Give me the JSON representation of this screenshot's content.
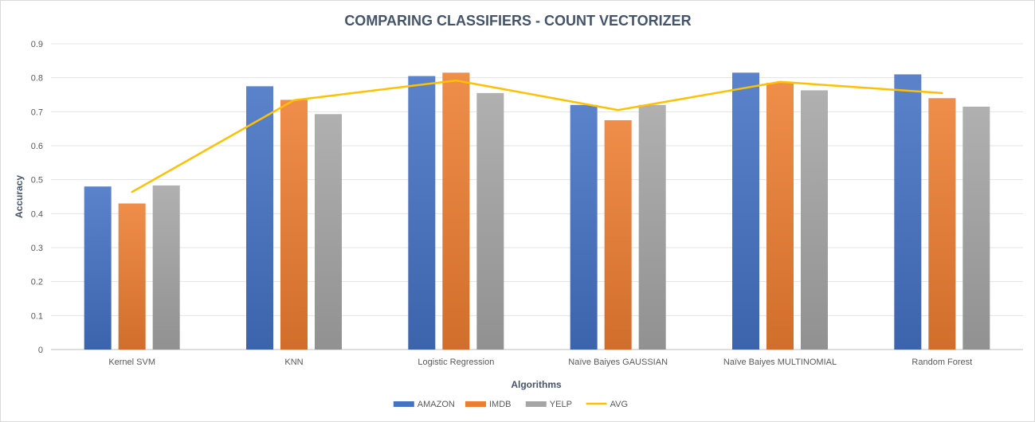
{
  "chart_data": {
    "type": "bar",
    "title": "COMPARING CLASSIFIERS - COUNT VECTORIZER",
    "xlabel": "Algorithms",
    "ylabel": "Accuracy",
    "ylim": [
      0,
      0.9
    ],
    "yticks": [
      "0",
      "0.1",
      "0.2",
      "0.3",
      "0.4",
      "0.5",
      "0.6",
      "0.7",
      "0.8",
      "0.9"
    ],
    "grid": true,
    "legend_position": "bottom",
    "categories": [
      "Kernel SVM",
      "KNN",
      "Logistic Regression",
      "Naïve Baiyes GAUSSIAN",
      "Naïve Baiyes MULTINOMIAL",
      "Random Forest"
    ],
    "series": [
      {
        "name": "AMAZON",
        "type": "bar",
        "color": "#4472c4",
        "values": [
          0.48,
          0.775,
          0.805,
          0.72,
          0.815,
          0.81
        ]
      },
      {
        "name": "IMDB",
        "type": "bar",
        "color": "#ed7d31",
        "values": [
          0.43,
          0.735,
          0.815,
          0.675,
          0.785,
          0.74
        ]
      },
      {
        "name": "YELP",
        "type": "bar",
        "color": "#a5a5a5",
        "values": [
          0.483,
          0.693,
          0.755,
          0.72,
          0.763,
          0.715
        ]
      },
      {
        "name": "AVG",
        "type": "line",
        "color": "#ffc000",
        "values": [
          0.464,
          0.734,
          0.792,
          0.705,
          0.788,
          0.755
        ]
      }
    ]
  }
}
